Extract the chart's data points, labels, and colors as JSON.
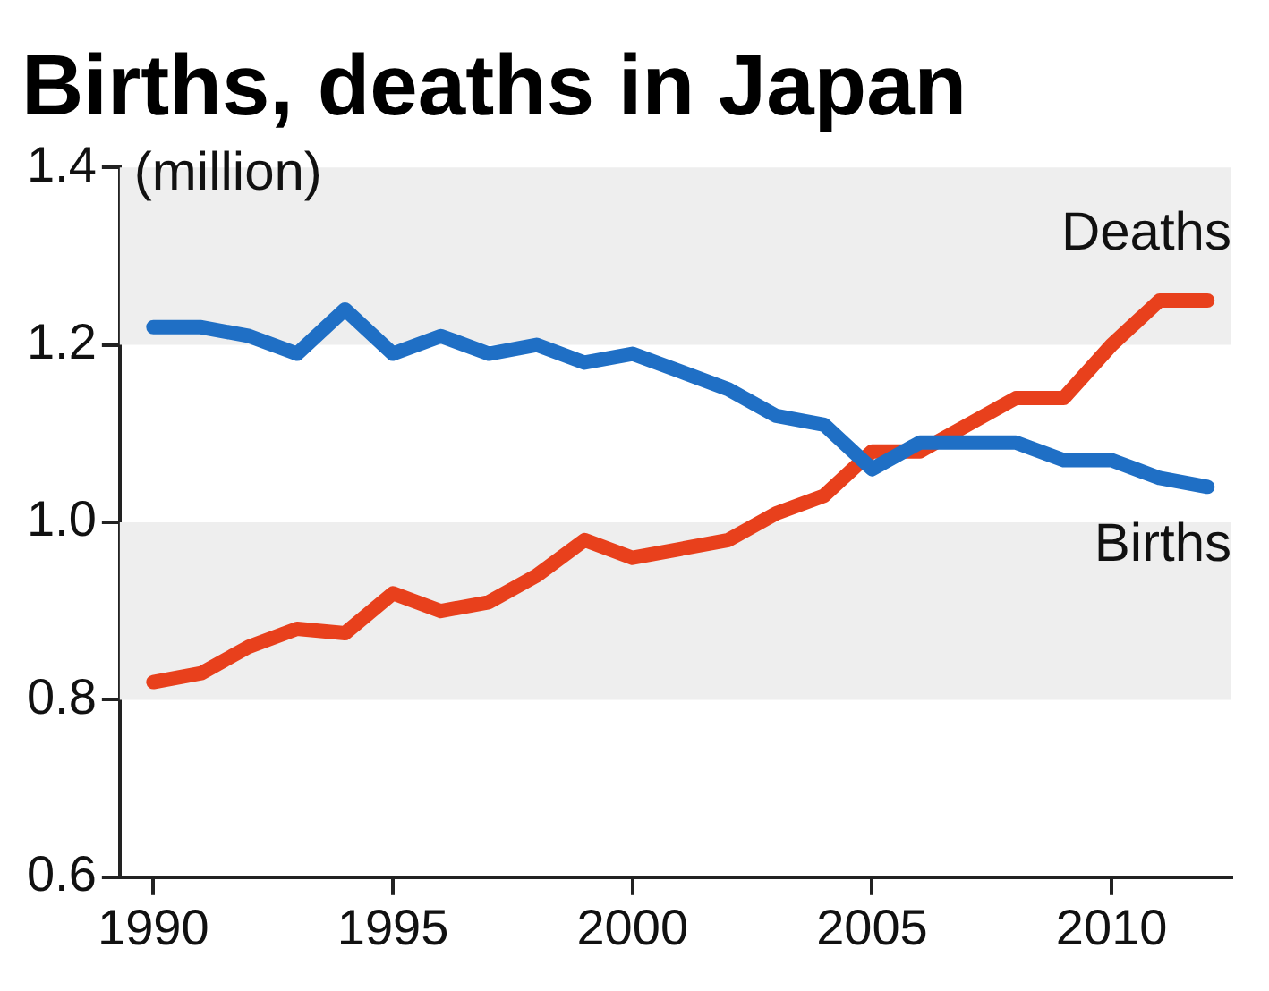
{
  "chart_data": {
    "type": "line",
    "title": "Births, deaths in Japan",
    "ylabel": "(million)",
    "x": [
      1990,
      1991,
      1992,
      1993,
      1994,
      1995,
      1996,
      1997,
      1998,
      1999,
      2000,
      2001,
      2002,
      2003,
      2004,
      2005,
      2006,
      2007,
      2008,
      2009,
      2010,
      2011,
      2012
    ],
    "series": [
      {
        "name": "Births",
        "color": "#1f6fc5",
        "values": [
          1.22,
          1.22,
          1.21,
          1.19,
          1.24,
          1.19,
          1.21,
          1.19,
          1.2,
          1.18,
          1.19,
          1.17,
          1.15,
          1.12,
          1.11,
          1.06,
          1.09,
          1.09,
          1.09,
          1.07,
          1.07,
          1.05,
          1.04
        ]
      },
      {
        "name": "Deaths",
        "color": "#e8401c",
        "values": [
          0.82,
          0.83,
          0.86,
          0.88,
          0.875,
          0.92,
          0.9,
          0.91,
          0.94,
          0.98,
          0.96,
          0.97,
          0.98,
          1.01,
          1.03,
          1.08,
          1.08,
          1.11,
          1.14,
          1.14,
          1.2,
          1.25,
          1.25
        ]
      }
    ],
    "xlim": [
      1989.3,
      2012.5
    ],
    "xticks": [
      1990,
      1995,
      2000,
      2005,
      2010
    ],
    "ylim": [
      0.6,
      1.4
    ],
    "yticks": [
      {
        "value": 0.6,
        "label": "0.6"
      },
      {
        "value": 0.8,
        "label": "0.8"
      },
      {
        "value": 1.0,
        "label": "1.0"
      },
      {
        "value": 1.2,
        "label": "1.2"
      },
      {
        "value": 1.4,
        "label": "1.4"
      }
    ],
    "bands": [
      {
        "axis": "y",
        "from": 0.8,
        "to": 1.0,
        "color": "#eeeeee"
      },
      {
        "axis": "y",
        "from": 1.2,
        "to": 1.4,
        "color": "#eeeeee"
      }
    ],
    "grid": false,
    "legend": false
  }
}
